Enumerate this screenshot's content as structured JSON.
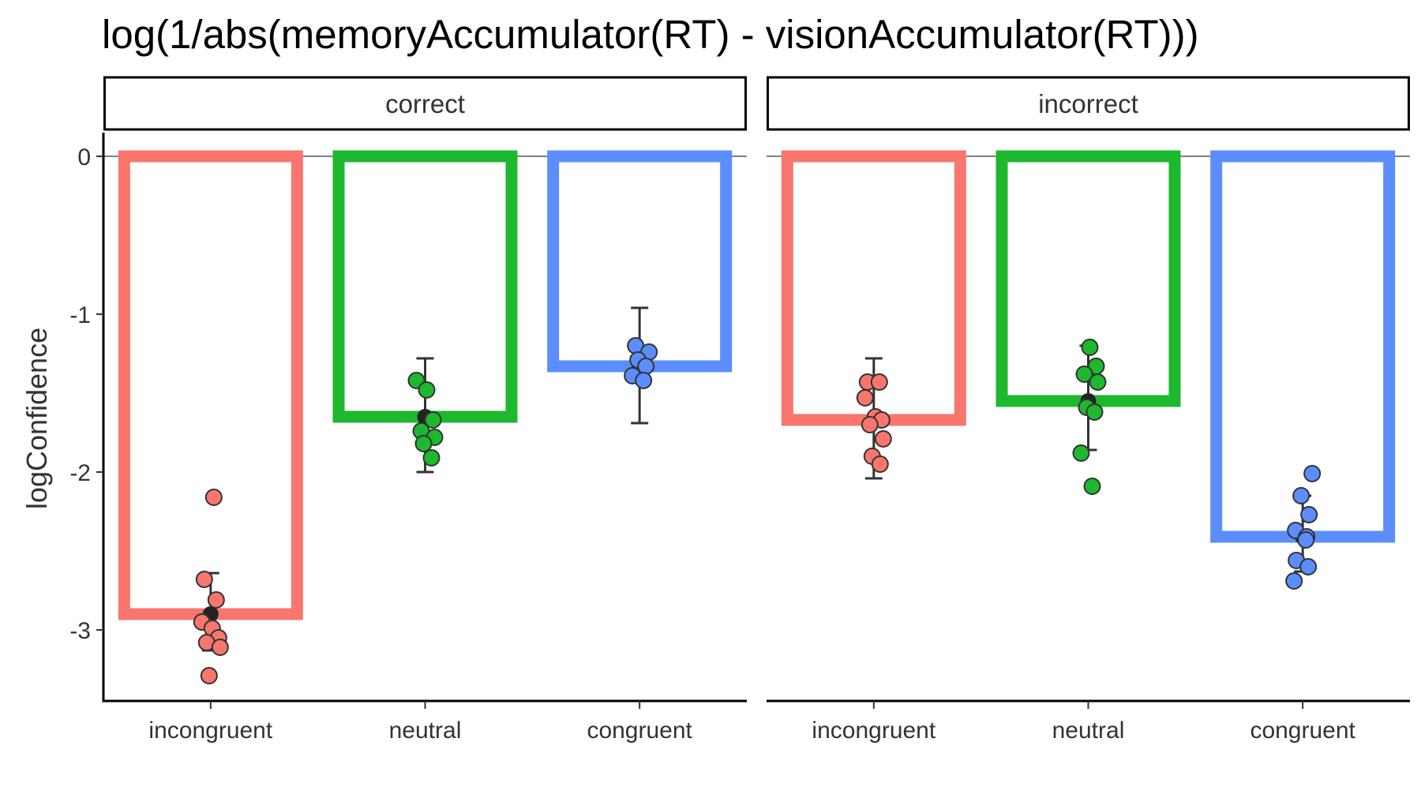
{
  "chart_data": {
    "type": "bar",
    "title": "log(1/abs(memoryAccumulator(RT) - visionAccumulator(RT)))",
    "ylabel": "logConfidence",
    "xlabel": "",
    "ylim": [
      -3.45,
      0.15
    ],
    "yticks": [
      0,
      -1,
      -2,
      -3
    ],
    "ytick_labels": [
      "0",
      "-1",
      "-2",
      "-3"
    ],
    "grid": false,
    "legend": "none",
    "categories": [
      "incongruent",
      "neutral",
      "congruent"
    ],
    "colors": {
      "incongruent": "#F8766D",
      "neutral": "#1DB82E",
      "congruent": "#5B8DFF",
      "mean_point": "#222222",
      "error_bar": "#333333"
    },
    "panels": [
      {
        "label": "correct",
        "bars": [
          {
            "category": "incongruent",
            "mean": -2.9,
            "err_low": -3.13,
            "err_high": -2.64,
            "points": [
              -2.16,
              -2.68,
              -2.81,
              -2.95,
              -2.99,
              -3.05,
              -3.08,
              -3.11,
              -3.29
            ]
          },
          {
            "category": "neutral",
            "mean": -1.65,
            "err_low": -2.0,
            "err_high": -1.28,
            "points": [
              -1.42,
              -1.48,
              -1.67,
              -1.74,
              -1.78,
              -1.82,
              -1.91
            ]
          },
          {
            "category": "congruent",
            "mean": -1.33,
            "err_low": -1.69,
            "err_high": -0.96,
            "points": [
              -1.2,
              -1.24,
              -1.29,
              -1.33,
              -1.39,
              -1.42
            ]
          }
        ]
      },
      {
        "label": "incorrect",
        "bars": [
          {
            "category": "incongruent",
            "mean": -1.67,
            "err_low": -2.04,
            "err_high": -1.28,
            "points": [
              -1.43,
              -1.43,
              -1.53,
              -1.65,
              -1.67,
              -1.7,
              -1.79,
              -1.9,
              -1.95
            ]
          },
          {
            "category": "neutral",
            "mean": -1.55,
            "err_low": -1.86,
            "err_high": -1.2,
            "points": [
              -1.21,
              -1.33,
              -1.38,
              -1.43,
              -1.59,
              -1.62,
              -1.88,
              -2.09
            ]
          },
          {
            "category": "congruent",
            "mean": -2.41,
            "err_low": -2.63,
            "err_high": -2.15,
            "points": [
              -2.01,
              -2.15,
              -2.27,
              -2.37,
              -2.41,
              -2.43,
              -2.56,
              -2.6,
              -2.69
            ]
          }
        ]
      }
    ]
  }
}
